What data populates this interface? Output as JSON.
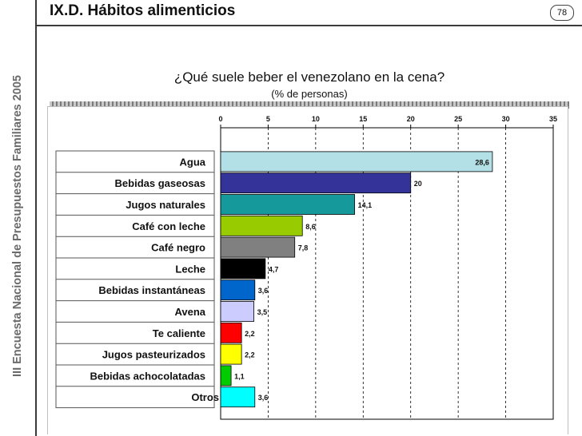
{
  "sidebar": {
    "title": "III Encuesta Nacional de Presupuestos Familiares 2005"
  },
  "header": {
    "title": "IX.D. Hábitos alimenticios",
    "page_number": "78"
  },
  "chart_data": {
    "type": "bar",
    "orientation": "horizontal",
    "title": "¿Qué suele beber el venezolano en la cena?",
    "subtitle": "(% de personas)",
    "xlim": [
      0,
      35
    ],
    "x_ticks": [
      "0",
      "5",
      "10",
      "15",
      "20",
      "25",
      "30",
      "35"
    ],
    "x_axis_position": "top",
    "grid": "vertical-dashed",
    "categories": [
      "Agua",
      "Bebidas gaseosas",
      "Jugos naturales",
      "Café con leche",
      "Café negro",
      "Leche",
      "Bebidas instantáneas",
      "Avena",
      "Te caliente",
      "Jugos pasteurizados",
      "Bebidas achocolatadas",
      "Otros"
    ],
    "values": [
      28.6,
      20,
      14.1,
      8.6,
      7.8,
      4.7,
      3.6,
      3.5,
      2.2,
      2.2,
      1.1,
      3.6
    ],
    "value_labels": [
      "28,6",
      "20",
      "14,1",
      "8,6",
      "7,8",
      "4,7",
      "3,6",
      "3,5",
      "2,2",
      "2,2",
      "1,1",
      "3,6"
    ],
    "colors": [
      "#b3e0e6",
      "#33339a",
      "#16999b",
      "#99cc00",
      "#808080",
      "#000000",
      "#0066cc",
      "#ccccff",
      "#ff0000",
      "#ffff00",
      "#00cc00",
      "#00ffff"
    ]
  }
}
